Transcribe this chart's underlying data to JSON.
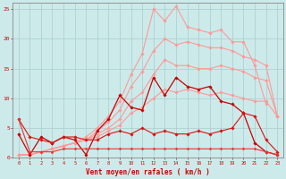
{
  "x": [
    0,
    1,
    2,
    3,
    4,
    5,
    6,
    7,
    8,
    9,
    10,
    11,
    12,
    13,
    14,
    15,
    16,
    17,
    18,
    19,
    20,
    21,
    22,
    23
  ],
  "series": [
    {
      "name": "pink_top",
      "color": "#ff9999",
      "lw": 0.8,
      "marker": "D",
      "markersize": 1.8,
      "y": [
        0.5,
        0.5,
        1.0,
        1.5,
        2.0,
        2.5,
        3.5,
        5.0,
        7.0,
        9.5,
        14.0,
        17.5,
        25.0,
        23.0,
        25.5,
        22.0,
        21.5,
        21.0,
        21.5,
        19.5,
        19.5,
        15.5,
        9.0,
        null
      ]
    },
    {
      "name": "pink_high",
      "color": "#ff9999",
      "lw": 0.8,
      "marker": "D",
      "markersize": 1.8,
      "y": [
        0.5,
        0.5,
        1.0,
        1.5,
        2.0,
        2.5,
        3.0,
        4.5,
        6.0,
        8.0,
        12.0,
        14.5,
        18.0,
        20.0,
        19.0,
        19.5,
        19.0,
        18.5,
        18.5,
        18.0,
        17.0,
        16.5,
        15.5,
        7.0
      ]
    },
    {
      "name": "pink_mid",
      "color": "#ff9999",
      "lw": 0.8,
      "marker": "D",
      "markersize": 1.8,
      "y": [
        0.5,
        0.5,
        1.0,
        1.5,
        2.0,
        2.5,
        3.0,
        4.0,
        5.0,
        6.5,
        9.5,
        11.0,
        14.0,
        16.5,
        15.5,
        15.5,
        15.0,
        15.0,
        15.5,
        15.0,
        14.5,
        13.5,
        13.0,
        7.0
      ]
    },
    {
      "name": "pink_low",
      "color": "#ff9999",
      "lw": 0.8,
      "marker": "D",
      "markersize": 1.8,
      "y": [
        0.5,
        0.5,
        1.0,
        1.5,
        2.0,
        2.5,
        3.0,
        3.5,
        4.5,
        5.5,
        7.5,
        8.5,
        10.0,
        11.5,
        11.0,
        11.5,
        11.0,
        10.5,
        11.0,
        10.5,
        10.0,
        9.5,
        9.5,
        7.0
      ]
    },
    {
      "name": "red_jagged_high",
      "color": "#cc0000",
      "lw": 0.9,
      "marker": "D",
      "markersize": 1.8,
      "y": [
        4.0,
        0.5,
        3.5,
        2.5,
        3.5,
        3.0,
        0.5,
        4.5,
        6.5,
        10.5,
        8.5,
        8.0,
        13.5,
        10.5,
        13.5,
        12.0,
        11.5,
        12.0,
        9.5,
        9.0,
        7.5,
        2.5,
        1.0,
        0.5
      ]
    },
    {
      "name": "red_mid",
      "color": "#dd1111",
      "lw": 0.8,
      "marker": "D",
      "markersize": 1.8,
      "y": [
        6.5,
        3.5,
        3.0,
        2.5,
        3.5,
        3.5,
        3.0,
        3.0,
        4.0,
        4.5,
        4.0,
        5.0,
        4.0,
        4.5,
        4.0,
        4.0,
        4.5,
        4.0,
        4.5,
        5.0,
        7.5,
        7.0,
        3.0,
        1.0
      ]
    },
    {
      "name": "red_baseline",
      "color": "#ee3333",
      "lw": 0.8,
      "marker": "D",
      "markersize": 1.5,
      "y": [
        6.5,
        1.0,
        1.0,
        1.0,
        1.5,
        1.5,
        1.5,
        1.5,
        1.5,
        1.5,
        1.5,
        1.5,
        1.5,
        1.5,
        1.5,
        1.5,
        1.5,
        1.5,
        1.5,
        1.5,
        1.5,
        1.5,
        1.0,
        0.5
      ]
    }
  ],
  "ylim": [
    0,
    26
  ],
  "yticks": [
    0,
    5,
    10,
    15,
    20,
    25
  ],
  "xlabel": "Vent moyen/en rafales ( km/h )",
  "background_color": "#cceaea",
  "grid_color": "#aacccc",
  "xlabel_color": "#cc0000",
  "tick_color": "#cc0000",
  "spine_color": "#888888",
  "figsize": [
    3.2,
    2.0
  ],
  "dpi": 100
}
